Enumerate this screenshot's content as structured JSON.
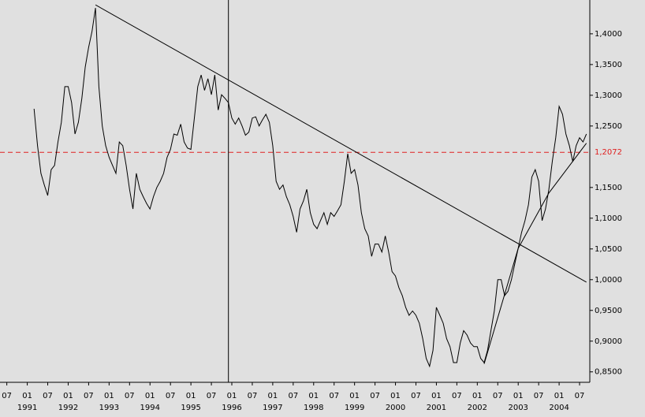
{
  "chart_data": {
    "type": "line",
    "color": "#000000",
    "x": [
      "1991-03",
      "1991-04",
      "1991-05",
      "1991-06",
      "1991-07",
      "1991-08",
      "1991-09",
      "1991-10",
      "1991-11",
      "1991-12",
      "1992-01",
      "1992-02",
      "1992-03",
      "1992-04",
      "1992-05",
      "1992-06",
      "1992-07",
      "1992-08",
      "1992-09",
      "1992-10",
      "1992-11",
      "1992-12",
      "1993-01",
      "1993-02",
      "1993-03",
      "1993-04",
      "1993-05",
      "1993-06",
      "1993-07",
      "1993-08",
      "1993-09",
      "1993-10",
      "1993-11",
      "1993-12",
      "1994-01",
      "1994-02",
      "1994-03",
      "1994-04",
      "1994-05",
      "1994-06",
      "1994-07",
      "1994-08",
      "1994-09",
      "1994-10",
      "1994-11",
      "1994-12",
      "1995-01",
      "1995-02",
      "1995-03",
      "1995-04",
      "1995-05",
      "1995-06",
      "1995-07",
      "1995-08",
      "1995-09",
      "1995-10",
      "1995-11",
      "1995-12",
      "1996-01",
      "1996-02",
      "1996-03",
      "1996-04",
      "1996-05",
      "1996-06",
      "1996-07",
      "1996-08",
      "1996-09",
      "1996-10",
      "1996-11",
      "1996-12",
      "1997-01",
      "1997-02",
      "1997-03",
      "1997-04",
      "1997-05",
      "1997-06",
      "1997-07",
      "1997-08",
      "1997-09",
      "1997-10",
      "1997-11",
      "1997-12",
      "1998-01",
      "1998-02",
      "1998-03",
      "1998-04",
      "1998-05",
      "1998-06",
      "1998-07",
      "1998-08",
      "1998-09",
      "1998-10",
      "1998-11",
      "1998-12",
      "1999-01",
      "1999-02",
      "1999-03",
      "1999-04",
      "1999-05",
      "1999-06",
      "1999-07",
      "1999-08",
      "1999-09",
      "1999-10",
      "1999-11",
      "1999-12",
      "2000-01",
      "2000-02",
      "2000-03",
      "2000-04",
      "2000-05",
      "2000-06",
      "2000-07",
      "2000-08",
      "2000-09",
      "2000-10",
      "2000-11",
      "2000-12",
      "2001-01",
      "2001-02",
      "2001-03",
      "2001-04",
      "2001-05",
      "2001-06",
      "2001-07",
      "2001-08",
      "2001-09",
      "2001-10",
      "2001-11",
      "2001-12",
      "2002-01",
      "2002-02",
      "2002-03",
      "2002-04",
      "2002-05",
      "2002-06",
      "2002-07",
      "2002-08",
      "2002-09",
      "2002-10",
      "2002-11",
      "2002-12",
      "2003-01",
      "2003-02",
      "2003-03",
      "2003-04",
      "2003-05",
      "2003-06",
      "2003-07",
      "2003-08",
      "2003-09",
      "2003-10",
      "2003-11",
      "2003-12",
      "2004-01",
      "2004-02",
      "2004-03",
      "2004-04",
      "2004-05",
      "2004-06",
      "2004-07",
      "2004-08",
      "2004-09"
    ],
    "values": [
      1.278,
      1.218,
      1.173,
      1.154,
      1.137,
      1.179,
      1.186,
      1.224,
      1.256,
      1.314,
      1.314,
      1.288,
      1.237,
      1.256,
      1.295,
      1.346,
      1.378,
      1.404,
      1.442,
      1.314,
      1.25,
      1.218,
      1.199,
      1.186,
      1.173,
      1.224,
      1.218,
      1.186,
      1.147,
      1.115,
      1.173,
      1.147,
      1.135,
      1.124,
      1.115,
      1.135,
      1.15,
      1.16,
      1.173,
      1.199,
      1.212,
      1.237,
      1.235,
      1.253,
      1.224,
      1.214,
      1.212,
      1.263,
      1.314,
      1.333,
      1.308,
      1.327,
      1.301,
      1.333,
      1.276,
      1.301,
      1.295,
      1.288,
      1.263,
      1.253,
      1.263,
      1.25,
      1.235,
      1.24,
      1.263,
      1.265,
      1.25,
      1.26,
      1.269,
      1.256,
      1.218,
      1.16,
      1.147,
      1.154,
      1.135,
      1.122,
      1.103,
      1.077,
      1.115,
      1.128,
      1.147,
      1.109,
      1.09,
      1.083,
      1.096,
      1.109,
      1.09,
      1.109,
      1.103,
      1.112,
      1.122,
      1.16,
      1.205,
      1.173,
      1.179,
      1.154,
      1.109,
      1.083,
      1.071,
      1.038,
      1.058,
      1.058,
      1.045,
      1.071,
      1.045,
      1.013,
      1.006,
      0.987,
      0.974,
      0.955,
      0.942,
      0.949,
      0.942,
      0.929,
      0.904,
      0.872,
      0.859,
      0.885,
      0.955,
      0.942,
      0.929,
      0.904,
      0.891,
      0.865,
      0.865,
      0.897,
      0.917,
      0.91,
      0.897,
      0.891,
      0.891,
      0.872,
      0.865,
      0.885,
      0.917,
      0.949,
      1.0,
      1.0,
      0.974,
      0.981,
      1.0,
      1.026,
      1.051,
      1.077,
      1.096,
      1.122,
      1.167,
      1.179,
      1.16,
      1.096,
      1.115,
      1.147,
      1.192,
      1.231,
      1.282,
      1.269,
      1.237,
      1.218,
      1.192,
      1.218,
      1.231,
      1.224,
      1.237
    ],
    "xlim": [
      "1990-05",
      "2004-10"
    ],
    "ylim": [
      0.833,
      1.455
    ],
    "yticks": [
      {
        "value": 0.85,
        "label": "0,8500"
      },
      {
        "value": 0.9,
        "label": "0,9000"
      },
      {
        "value": 0.95,
        "label": "0,9500"
      },
      {
        "value": 1.0,
        "label": "1,0000"
      },
      {
        "value": 1.05,
        "label": "1,0500"
      },
      {
        "value": 1.1,
        "label": "1,1000"
      },
      {
        "value": 1.15,
        "label": "1,1500"
      },
      {
        "value": 1.25,
        "label": "1,2500"
      },
      {
        "value": 1.3,
        "label": "1,3000"
      },
      {
        "value": 1.35,
        "label": "1,3500"
      },
      {
        "value": 1.4,
        "label": "1,4000"
      }
    ],
    "xticks": [
      {
        "value": "1990-07",
        "label": "07"
      },
      {
        "value": "1991-01",
        "label": "01"
      },
      {
        "value": "1991-07",
        "label": "07"
      },
      {
        "value": "1992-01",
        "label": "01"
      },
      {
        "value": "1992-07",
        "label": "07"
      },
      {
        "value": "1993-01",
        "label": "01"
      },
      {
        "value": "1993-07",
        "label": "07"
      },
      {
        "value": "1994-01",
        "label": "01"
      },
      {
        "value": "1994-07",
        "label": "07"
      },
      {
        "value": "1995-01",
        "label": "01"
      },
      {
        "value": "1995-07",
        "label": "07"
      },
      {
        "value": "1996-01",
        "label": "01"
      },
      {
        "value": "1996-07",
        "label": "07"
      },
      {
        "value": "1997-01",
        "label": "01"
      },
      {
        "value": "1997-07",
        "label": "07"
      },
      {
        "value": "1998-01",
        "label": "01"
      },
      {
        "value": "1998-07",
        "label": "07"
      },
      {
        "value": "1999-01",
        "label": "01"
      },
      {
        "value": "1999-07",
        "label": "07"
      },
      {
        "value": "2000-01",
        "label": "01"
      },
      {
        "value": "2000-07",
        "label": "07"
      },
      {
        "value": "2001-01",
        "label": "01"
      },
      {
        "value": "2001-07",
        "label": "07"
      },
      {
        "value": "2002-01",
        "label": "01"
      },
      {
        "value": "2002-07",
        "label": "07"
      },
      {
        "value": "2003-01",
        "label": "01"
      },
      {
        "value": "2003-07",
        "label": "07"
      },
      {
        "value": "2004-01",
        "label": "01"
      },
      {
        "value": "2004-07",
        "label": "07"
      }
    ],
    "xyears": [
      {
        "value": "1991-01",
        "label": "1991"
      },
      {
        "value": "1992-01",
        "label": "1992"
      },
      {
        "value": "1993-01",
        "label": "1993"
      },
      {
        "value": "1994-01",
        "label": "1994"
      },
      {
        "value": "1995-01",
        "label": "1995"
      },
      {
        "value": "1996-01",
        "label": "1996"
      },
      {
        "value": "1997-01",
        "label": "1997"
      },
      {
        "value": "1998-01",
        "label": "1998"
      },
      {
        "value": "1999-01",
        "label": "1999"
      },
      {
        "value": "2000-01",
        "label": "2000"
      },
      {
        "value": "2001-01",
        "label": "2001"
      },
      {
        "value": "2002-01",
        "label": "2002"
      },
      {
        "value": "2003-01",
        "label": "2003"
      },
      {
        "value": "2004-01",
        "label": "2004"
      }
    ],
    "reference": {
      "value": 1.2072,
      "label": "1,2072",
      "color": "#e02020"
    },
    "vline": "1995-12",
    "trendlines": [
      {
        "x": [
          "1992-09",
          "2004-09"
        ],
        "y": [
          1.447,
          0.996
        ]
      },
      {
        "x": [
          "2002-03",
          "2003-01",
          "2003-10",
          "2004-09"
        ],
        "y": [
          0.863,
          1.051,
          1.141,
          1.222
        ]
      }
    ]
  }
}
